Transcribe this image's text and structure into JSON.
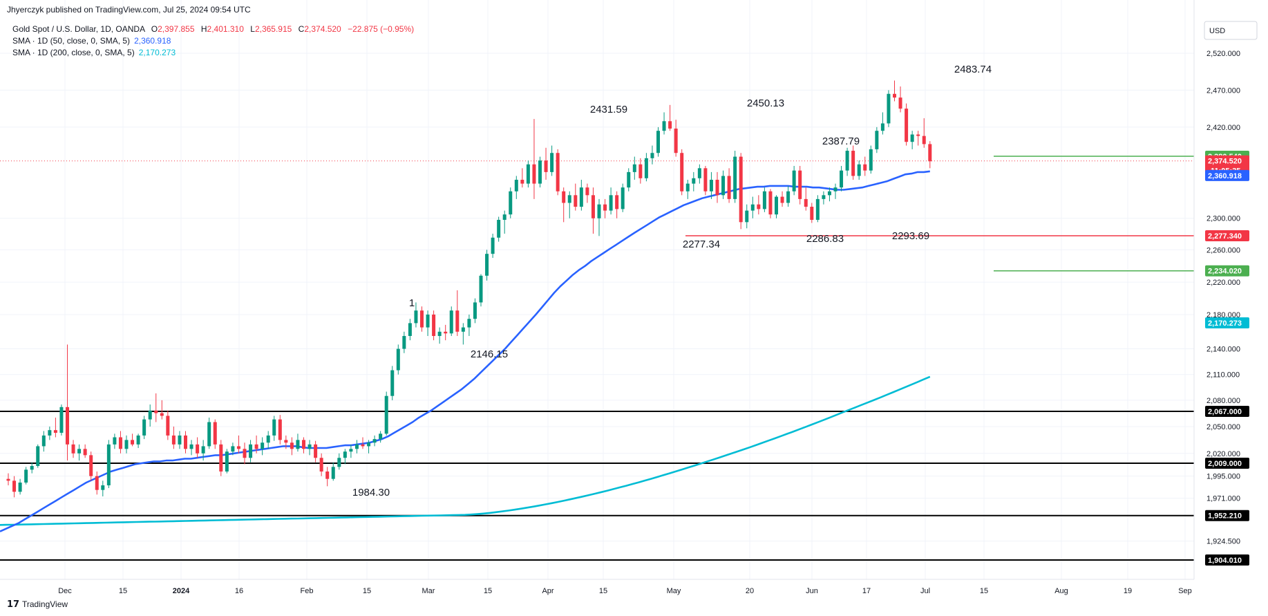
{
  "header": {
    "published": "Jhyerczyk published on TradingView.com, Jul 25, 2024 09:54 UTC",
    "symbol": "Gold Spot / U.S. Dollar, 1D, OANDA",
    "ohlc": {
      "o_label": "O",
      "o": "2,397.855",
      "h_label": "H",
      "h": "2,401.310",
      "l_label": "L",
      "l": "2,365.915",
      "c_label": "C",
      "c": "2,374.520",
      "change": "−22.875 (−0.95%)"
    },
    "sma50_label": "SMA · 1D (50, close, 0, SMA, 5)",
    "sma50_value": "2,360.918",
    "sma200_label": "SMA · 1D (200, close, 0, SMA, 5)",
    "sma200_value": "2,170.273"
  },
  "currency": "USD",
  "brand": "TradingView",
  "colors": {
    "up": "#089981",
    "down": "#f23645",
    "sma50": "#2962ff",
    "sma200": "#00bcd4",
    "resistance_green": "#4caf50",
    "support_red": "#f23645",
    "level_black": "#000000"
  },
  "chart_data": {
    "type": "candlestick",
    "y_axis": {
      "ticks": [
        "2,520.000",
        "2,470.000",
        "2,420.000",
        "2,300.000",
        "2,260.000",
        "2,220.000",
        "2,180.000",
        "2,140.000",
        "2,110.000",
        "2,080.000",
        "2,050.000",
        "2,020.000",
        "1,995.000",
        "1,971.000",
        "1,924.500"
      ]
    },
    "x_axis": {
      "labels": [
        "Dec",
        "15",
        "2024",
        "16",
        "Feb",
        "15",
        "Mar",
        "15",
        "Apr",
        "15",
        "May",
        "20",
        "Jun",
        "17",
        "Jul",
        "15",
        "Aug",
        "19",
        "Sep"
      ]
    },
    "horizontal_levels": [
      {
        "value": 2380.54,
        "label": "2,380.540",
        "color": "#4caf50"
      },
      {
        "value": 2277.34,
        "label": "2,277.340",
        "color": "#f23645"
      },
      {
        "value": 2234.02,
        "label": "2,234.020",
        "color": "#4caf50"
      },
      {
        "value": 2067.0,
        "label": "2,067.000",
        "color": "#000000"
      },
      {
        "value": 2009.0,
        "label": "2,009.000",
        "color": "#000000"
      },
      {
        "value": 1952.21,
        "label": "1,952.210",
        "color": "#000000"
      },
      {
        "value": 1904.01,
        "label": "1,904.010",
        "color": "#000000"
      }
    ],
    "price_tags": [
      {
        "value": 2374.52,
        "label": "2,374.520",
        "countdown": "11:05:35",
        "color": "#f23645"
      },
      {
        "value": 2360.918,
        "label": "2,360.918",
        "color": "#2962ff"
      },
      {
        "value": 2170.273,
        "label": "2,170.273",
        "color": "#00bcd4"
      }
    ],
    "annotations": [
      "2483.74",
      "2450.13",
      "2431.59",
      "2387.79",
      "2277.34",
      "2286.83",
      "2293.69",
      "2146.15",
      "1984.30",
      "1"
    ],
    "candles": [
      [
        1992,
        1998,
        1985,
        1990
      ],
      [
        1990,
        1995,
        1972,
        1978
      ],
      [
        1978,
        1992,
        1975,
        1988
      ],
      [
        1988,
        2005,
        1986,
        2002
      ],
      [
        2002,
        2010,
        1998,
        2006
      ],
      [
        2006,
        2030,
        2004,
        2028
      ],
      [
        2028,
        2045,
        2022,
        2040
      ],
      [
        2040,
        2050,
        2035,
        2046
      ],
      [
        2046,
        2060,
        2038,
        2043
      ],
      [
        2043,
        2075,
        2040,
        2072
      ],
      [
        2072,
        2145,
        2012,
        2030
      ],
      [
        2030,
        2035,
        2015,
        2020
      ],
      [
        2020,
        2030,
        2012,
        2025
      ],
      [
        2025,
        2030,
        2015,
        2018
      ],
      [
        2018,
        2022,
        1990,
        1995
      ],
      [
        1995,
        2000,
        1975,
        1980
      ],
      [
        1980,
        1990,
        1973,
        1985
      ],
      [
        1985,
        2035,
        1982,
        2030
      ],
      [
        2030,
        2042,
        2025,
        2038
      ],
      [
        2038,
        2045,
        2020,
        2025
      ],
      [
        2025,
        2040,
        2020,
        2035
      ],
      [
        2035,
        2042,
        2028,
        2030
      ],
      [
        2030,
        2042,
        2026,
        2040
      ],
      [
        2040,
        2062,
        2036,
        2058
      ],
      [
        2058,
        2075,
        2050,
        2068
      ],
      [
        2068,
        2088,
        2055,
        2065
      ],
      [
        2065,
        2080,
        2058,
        2062
      ],
      [
        2062,
        2068,
        2035,
        2040
      ],
      [
        2040,
        2050,
        2025,
        2030
      ],
      [
        2030,
        2045,
        2025,
        2040
      ],
      [
        2040,
        2045,
        2020,
        2025
      ],
      [
        2025,
        2035,
        2018,
        2030
      ],
      [
        2030,
        2038,
        2015,
        2020
      ],
      [
        2020,
        2035,
        2012,
        2028
      ],
      [
        2028,
        2060,
        2025,
        2055
      ],
      [
        2055,
        2058,
        2025,
        2030
      ],
      [
        2030,
        2035,
        1995,
        2000
      ],
      [
        2000,
        2025,
        1998,
        2022
      ],
      [
        2022,
        2032,
        2018,
        2028
      ],
      [
        2028,
        2040,
        2020,
        2025
      ],
      [
        2025,
        2032,
        2008,
        2015
      ],
      [
        2015,
        2035,
        2010,
        2030
      ],
      [
        2030,
        2040,
        2020,
        2025
      ],
      [
        2025,
        2038,
        2018,
        2032
      ],
      [
        2032,
        2045,
        2025,
        2040
      ],
      [
        2040,
        2062,
        2034,
        2058
      ],
      [
        2058,
        2063,
        2030,
        2035
      ],
      [
        2035,
        2040,
        2025,
        2032
      ],
      [
        2032,
        2038,
        2018,
        2025
      ],
      [
        2025,
        2042,
        2022,
        2035
      ],
      [
        2035,
        2038,
        2020,
        2025
      ],
      [
        2025,
        2035,
        2018,
        2030
      ],
      [
        2030,
        2034,
        2010,
        2015
      ],
      [
        2015,
        2020,
        1995,
        2000
      ],
      [
        2000,
        2005,
        1984,
        1992
      ],
      [
        1992,
        2010,
        1990,
        2005
      ],
      [
        2005,
        2020,
        2002,
        2015
      ],
      [
        2015,
        2025,
        2008,
        2022
      ],
      [
        2022,
        2030,
        2015,
        2025
      ],
      [
        2025,
        2035,
        2020,
        2030
      ],
      [
        2030,
        2038,
        2025,
        2028
      ],
      [
        2028,
        2035,
        2020,
        2032
      ],
      [
        2032,
        2040,
        2028,
        2036
      ],
      [
        2036,
        2045,
        2032,
        2042
      ],
      [
        2042,
        2090,
        2040,
        2085
      ],
      [
        2085,
        2120,
        2080,
        2115
      ],
      [
        2115,
        2145,
        2110,
        2140
      ],
      [
        2140,
        2160,
        2135,
        2155
      ],
      [
        2155,
        2175,
        2150,
        2170
      ],
      [
        2170,
        2195,
        2165,
        2185
      ],
      [
        2185,
        2190,
        2160,
        2165
      ],
      [
        2165,
        2185,
        2155,
        2180
      ],
      [
        2180,
        2185,
        2150,
        2155
      ],
      [
        2155,
        2165,
        2146,
        2160
      ],
      [
        2160,
        2168,
        2150,
        2158
      ],
      [
        2158,
        2190,
        2155,
        2185
      ],
      [
        2185,
        2210,
        2155,
        2160
      ],
      [
        2160,
        2170,
        2145,
        2165
      ],
      [
        2165,
        2180,
        2155,
        2175
      ],
      [
        2175,
        2200,
        2170,
        2195
      ],
      [
        2195,
        2230,
        2190,
        2228
      ],
      [
        2228,
        2260,
        2222,
        2255
      ],
      [
        2255,
        2280,
        2250,
        2275
      ],
      [
        2275,
        2302,
        2270,
        2298
      ],
      [
        2298,
        2310,
        2280,
        2305
      ],
      [
        2305,
        2340,
        2300,
        2335
      ],
      [
        2335,
        2355,
        2325,
        2350
      ],
      [
        2350,
        2365,
        2340,
        2345
      ],
      [
        2345,
        2375,
        2340,
        2370
      ],
      [
        2370,
        2431,
        2325,
        2345
      ],
      [
        2345,
        2380,
        2340,
        2375
      ],
      [
        2375,
        2392,
        2350,
        2360
      ],
      [
        2360,
        2395,
        2355,
        2385
      ],
      [
        2385,
        2390,
        2330,
        2335
      ],
      [
        2335,
        2340,
        2295,
        2320
      ],
      [
        2320,
        2335,
        2300,
        2330
      ],
      [
        2330,
        2345,
        2310,
        2315
      ],
      [
        2315,
        2350,
        2310,
        2340
      ],
      [
        2340,
        2345,
        2320,
        2330
      ],
      [
        2330,
        2340,
        2280,
        2300
      ],
      [
        2300,
        2325,
        2277,
        2318
      ],
      [
        2318,
        2325,
        2300,
        2310
      ],
      [
        2310,
        2340,
        2305,
        2330
      ],
      [
        2330,
        2335,
        2300,
        2312
      ],
      [
        2312,
        2345,
        2308,
        2340
      ],
      [
        2340,
        2365,
        2335,
        2360
      ],
      [
        2360,
        2380,
        2350,
        2370
      ],
      [
        2370,
        2378,
        2345,
        2352
      ],
      [
        2352,
        2385,
        2348,
        2378
      ],
      [
        2378,
        2395,
        2370,
        2385
      ],
      [
        2385,
        2420,
        2380,
        2415
      ],
      [
        2415,
        2440,
        2410,
        2428
      ],
      [
        2428,
        2450,
        2415,
        2418
      ],
      [
        2418,
        2430,
        2380,
        2385
      ],
      [
        2385,
        2390,
        2330,
        2335
      ],
      [
        2335,
        2350,
        2325,
        2345
      ],
      [
        2345,
        2360,
        2335,
        2352
      ],
      [
        2352,
        2370,
        2345,
        2365
      ],
      [
        2365,
        2368,
        2330,
        2335
      ],
      [
        2335,
        2360,
        2325,
        2350
      ],
      [
        2350,
        2360,
        2320,
        2330
      ],
      [
        2330,
        2362,
        2325,
        2355
      ],
      [
        2355,
        2365,
        2320,
        2325
      ],
      [
        2325,
        2388,
        2320,
        2380
      ],
      [
        2380,
        2385,
        2286,
        2295
      ],
      [
        2295,
        2318,
        2287,
        2310
      ],
      [
        2310,
        2328,
        2300,
        2318
      ],
      [
        2318,
        2330,
        2305,
        2312
      ],
      [
        2312,
        2340,
        2308,
        2335
      ],
      [
        2335,
        2338,
        2300,
        2305
      ],
      [
        2305,
        2330,
        2300,
        2328
      ],
      [
        2328,
        2335,
        2315,
        2320
      ],
      [
        2320,
        2342,
        2315,
        2335
      ],
      [
        2335,
        2368,
        2330,
        2362
      ],
      [
        2362,
        2368,
        2318,
        2325
      ],
      [
        2325,
        2340,
        2310,
        2315
      ],
      [
        2315,
        2320,
        2294,
        2298
      ],
      [
        2298,
        2330,
        2295,
        2325
      ],
      [
        2325,
        2335,
        2318,
        2330
      ],
      [
        2330,
        2340,
        2322,
        2335
      ],
      [
        2335,
        2345,
        2325,
        2340
      ],
      [
        2340,
        2368,
        2335,
        2362
      ],
      [
        2362,
        2392,
        2355,
        2388
      ],
      [
        2388,
        2395,
        2350,
        2355
      ],
      [
        2355,
        2375,
        2350,
        2370
      ],
      [
        2370,
        2380,
        2355,
        2362
      ],
      [
        2362,
        2395,
        2358,
        2390
      ],
      [
        2390,
        2420,
        2385,
        2415
      ],
      [
        2415,
        2440,
        2410,
        2425
      ],
      [
        2425,
        2470,
        2420,
        2465
      ],
      [
        2465,
        2483,
        2455,
        2460
      ],
      [
        2460,
        2475,
        2440,
        2445
      ],
      [
        2445,
        2452,
        2395,
        2400
      ],
      [
        2400,
        2415,
        2390,
        2410
      ],
      [
        2410,
        2415,
        2395,
        2408
      ],
      [
        2408,
        2432,
        2392,
        2397
      ],
      [
        2397,
        2401,
        2365,
        2374
      ]
    ],
    "sma50": [
      1935,
      1938,
      1941,
      1944,
      1948,
      1952,
      1956,
      1960,
      1964,
      1968,
      1972,
      1976,
      1980,
      1984,
      1988,
      1991,
      1994,
      1997,
      2000,
      2002,
      2004,
      2006,
      2008,
      2009,
      2010,
      2011,
      2011,
      2012,
      2012,
      2013,
      2014,
      2014,
      2015,
      2016,
      2017,
      2018,
      2018,
      2019,
      2020,
      2021,
      2022,
      2023,
      2024,
      2025,
      2026,
      2027,
      2028,
      2028,
      2028,
      2027,
      2026,
      2026,
      2026,
      2026,
      2027,
      2028,
      2029,
      2029,
      2030,
      2031,
      2032,
      2034,
      2036,
      2039,
      2043,
      2047,
      2051,
      2055,
      2060,
      2064,
      2068,
      2073,
      2078,
      2083,
      2088,
      2093,
      2099,
      2105,
      2112,
      2119,
      2126,
      2133,
      2140,
      2148,
      2156,
      2164,
      2172,
      2180,
      2189,
      2198,
      2207,
      2215,
      2222,
      2229,
      2235,
      2240,
      2246,
      2251,
      2256,
      2261,
      2266,
      2271,
      2276,
      2281,
      2286,
      2291,
      2296,
      2301,
      2305,
      2309,
      2313,
      2317,
      2320,
      2323,
      2326,
      2328,
      2330,
      2332,
      2334,
      2336,
      2338,
      2339,
      2340,
      2341,
      2341,
      2342,
      2342,
      2342,
      2342,
      2341,
      2341,
      2341,
      2340,
      2340,
      2339,
      2338,
      2337,
      2337,
      2338,
      2339,
      2340,
      2342,
      2344,
      2346,
      2348,
      2351,
      2354,
      2357,
      2358,
      2360,
      2360,
      2361
    ]
  }
}
